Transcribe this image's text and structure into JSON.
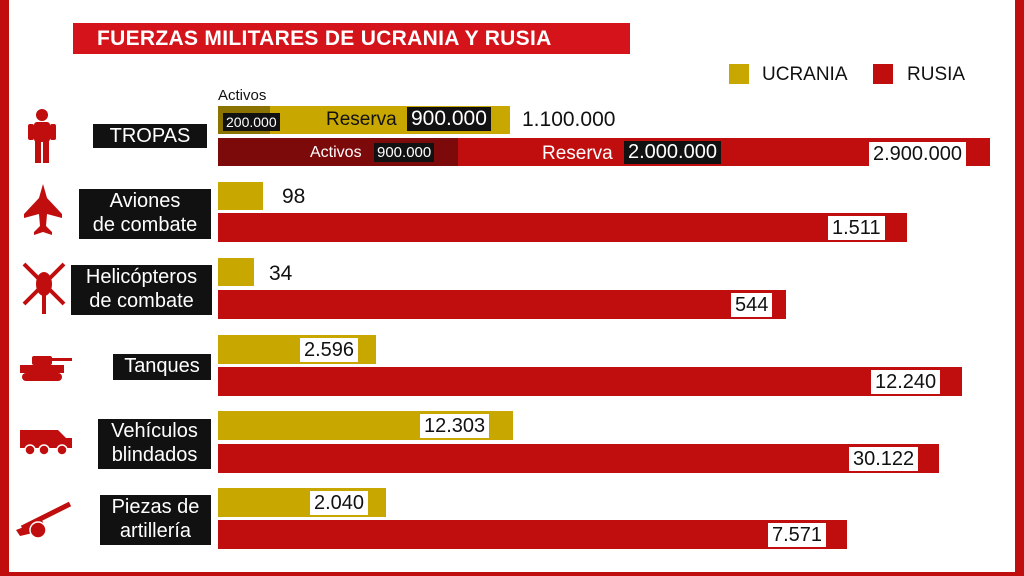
{
  "title": "FUERZAS MILITARES DE UCRANIA Y RUSIA",
  "legend": [
    {
      "label": "UCRANIA",
      "color": "#c8a800"
    },
    {
      "label": "RUSIA",
      "color": "#c00d0d"
    }
  ],
  "colors": {
    "ukraine": "#c8a800",
    "russia": "#c00d0d",
    "russia_dark": "#7d0a0a",
    "ukraine_dark": "#8a7300"
  },
  "tropas": {
    "label": "TROPAS",
    "icon": "soldier-icon",
    "ukraine": {
      "activos_label": "Activos",
      "activos_value": "200.000",
      "reserva_label": "Reserva",
      "reserva_value": "900.000",
      "total": "1.100.000"
    },
    "russia": {
      "activos_label": "Activos",
      "activos_value": "900.000",
      "reserva_label": "Reserva",
      "reserva_value": "2.000.000",
      "total": "2.900.000"
    }
  },
  "chart_data": {
    "type": "bar",
    "orientation": "horizontal",
    "title": "FUERZAS MILITARES DE UCRANIA Y RUSIA",
    "categories": [
      "TROPAS",
      "Aviones de combate",
      "Helicópteros de combate",
      "Tanques",
      "Vehículos blindados",
      "Piezas de artillería"
    ],
    "series": [
      {
        "name": "UCRANIA",
        "values": [
          1100000,
          98,
          34,
          2596,
          12303,
          2040
        ],
        "labels": [
          "1.100.000",
          "98",
          "34",
          "2.596",
          "12.303",
          "2.040"
        ]
      },
      {
        "name": "RUSIA",
        "values": [
          2900000,
          1511,
          544,
          12240,
          30122,
          7571
        ],
        "labels": [
          "2.900.000",
          "1.511",
          "544",
          "12.240",
          "30.122",
          "7.571"
        ]
      }
    ],
    "tropas_breakdown": {
      "UCRANIA": {
        "Activos": 200000,
        "Reserva": 900000
      },
      "RUSIA": {
        "Activos": 900000,
        "Reserva": 2000000
      }
    },
    "legend_position": "top-right",
    "grid": false
  },
  "categories": [
    {
      "line1": "Aviones",
      "line2": "de combate",
      "icon": "fighter-jet-icon",
      "ukraine": "98",
      "russia": "1.511"
    },
    {
      "line1": "Helicópteros",
      "line2": "de combate",
      "icon": "helicopter-icon",
      "ukraine": "34",
      "russia": "544"
    },
    {
      "line1": "Tanques",
      "line2": "",
      "icon": "tank-icon",
      "ukraine": "2.596",
      "russia": "12.240"
    },
    {
      "line1": "Vehículos",
      "line2": "blindados",
      "icon": "armored-vehicle-icon",
      "ukraine": "12.303",
      "russia": "30.122"
    },
    {
      "line1": "Piezas de",
      "line2": "artillería",
      "icon": "artillery-icon",
      "ukraine": "2.040",
      "russia": "7.571"
    }
  ]
}
